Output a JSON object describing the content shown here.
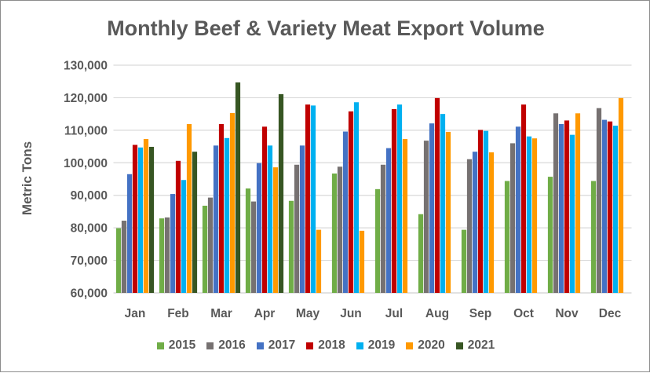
{
  "chart_data": {
    "type": "bar",
    "title": "Monthly Beef & Variety Meat Export Volume",
    "xlabel": "",
    "ylabel": "Metric Tons",
    "ylim": [
      60000,
      130000
    ],
    "yticks": [
      "60,000",
      "70,000",
      "80,000",
      "90,000",
      "100,000",
      "110,000",
      "120,000",
      "130,000"
    ],
    "grid": true,
    "legend": "bottom",
    "categories": [
      "Jan",
      "Feb",
      "Mar",
      "Apr",
      "May",
      "Jun",
      "Jul",
      "Aug",
      "Sep",
      "Oct",
      "Nov",
      "Dec"
    ],
    "series": [
      {
        "name": "2015",
        "color": "#70ad47",
        "values": [
          79900,
          82900,
          86800,
          92100,
          88300,
          96700,
          91900,
          84200,
          79400,
          94400,
          95700,
          94400
        ]
      },
      {
        "name": "2016",
        "color": "#767171",
        "values": [
          82200,
          83200,
          89300,
          88100,
          99400,
          98800,
          99400,
          106800,
          101100,
          106000,
          115200,
          116800
        ]
      },
      {
        "name": "2017",
        "color": "#4472c4",
        "values": [
          96500,
          90400,
          105300,
          99900,
          105300,
          109600,
          104500,
          112100,
          103400,
          111100,
          111900,
          113200
        ]
      },
      {
        "name": "2018",
        "color": "#c00000",
        "values": [
          105500,
          100600,
          111900,
          111100,
          117900,
          115800,
          116500,
          119900,
          110100,
          117900,
          113000,
          112700
        ]
      },
      {
        "name": "2019",
        "color": "#00b0f0",
        "values": [
          104700,
          94700,
          107600,
          105300,
          117600,
          118600,
          117900,
          115000,
          109800,
          108100,
          108600,
          111400
        ]
      },
      {
        "name": "2020",
        "color": "#ff9900",
        "values": [
          107300,
          111900,
          115300,
          98600,
          79400,
          79100,
          107300,
          109500,
          103200,
          107500,
          115200,
          119900
        ]
      },
      {
        "name": "2021",
        "color": "#375623",
        "values": [
          104900,
          103400,
          124700,
          121100,
          null,
          null,
          null,
          null,
          null,
          null,
          null,
          null
        ]
      }
    ]
  }
}
